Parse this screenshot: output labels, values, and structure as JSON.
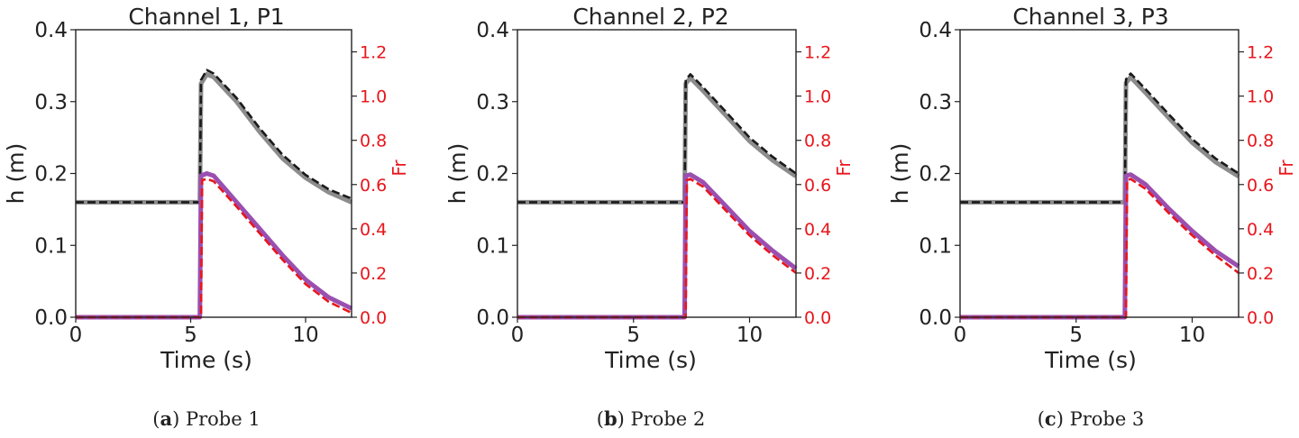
{
  "chart_data": [
    {
      "type": "line",
      "title": "Channel 1, P1",
      "caption_label": "a",
      "caption_text": "Probe 1",
      "xlabel": "Time (s)",
      "ylabel": "h (m)",
      "y2label": "Fr",
      "xlim": [
        0,
        12
      ],
      "ylim": [
        0,
        0.4
      ],
      "y2lim": [
        0,
        1.3
      ],
      "xticks": [
        "0",
        "5",
        "10"
      ],
      "yticks": [
        "0.0",
        "0.1",
        "0.2",
        "0.3",
        "0.4"
      ],
      "y2ticks": [
        "0.0",
        "0.2",
        "0.4",
        "0.6",
        "0.8",
        "1.0",
        "1.2"
      ],
      "grid": false,
      "series": [
        {
          "axis": "left",
          "color": "#8c8c8c",
          "style": "solid-thick",
          "x": [
            0,
            5.4,
            5.45,
            5.7,
            6,
            7,
            8,
            9,
            10,
            11,
            12
          ],
          "y": [
            0.16,
            0.16,
            0.325,
            0.338,
            0.334,
            0.3,
            0.258,
            0.221,
            0.194,
            0.174,
            0.16
          ]
        },
        {
          "axis": "left",
          "color": "#1a1a1a",
          "style": "dashed",
          "x": [
            0,
            5.4,
            5.45,
            5.7,
            6,
            7,
            8,
            9,
            10,
            11,
            12
          ],
          "y": [
            0.16,
            0.16,
            0.33,
            0.344,
            0.339,
            0.305,
            0.263,
            0.226,
            0.198,
            0.178,
            0.165
          ]
        },
        {
          "axis": "right",
          "color": "#9b4fb0",
          "style": "solid-thick",
          "x": [
            0,
            5.4,
            5.45,
            5.7,
            6,
            7,
            8,
            9,
            10,
            11,
            12
          ],
          "y": [
            0,
            0,
            0.64,
            0.65,
            0.64,
            0.52,
            0.4,
            0.28,
            0.17,
            0.09,
            0.04
          ]
        },
        {
          "axis": "right",
          "color": "#e8161c",
          "style": "dashed",
          "x": [
            0,
            5.45,
            5.5,
            5.7,
            6,
            7,
            8,
            9,
            10,
            11,
            12
          ],
          "y": [
            0,
            0,
            0.62,
            0.625,
            0.615,
            0.5,
            0.38,
            0.26,
            0.15,
            0.07,
            0.02
          ]
        }
      ]
    },
    {
      "type": "line",
      "title": "Channel 2, P2",
      "caption_label": "b",
      "caption_text": "Probe 2",
      "xlabel": "Time (s)",
      "ylabel": "h (m)",
      "y2label": "Fr",
      "xlim": [
        0,
        12
      ],
      "ylim": [
        0,
        0.4
      ],
      "y2lim": [
        0,
        1.3
      ],
      "xticks": [
        "0",
        "5",
        "10"
      ],
      "yticks": [
        "0.0",
        "0.1",
        "0.2",
        "0.3",
        "0.4"
      ],
      "y2ticks": [
        "0.0",
        "0.2",
        "0.4",
        "0.6",
        "0.8",
        "1.0",
        "1.2"
      ],
      "grid": false,
      "series": [
        {
          "axis": "left",
          "color": "#8c8c8c",
          "style": "solid-thick",
          "x": [
            0,
            7.2,
            7.25,
            7.45,
            8,
            9,
            10,
            11,
            12
          ],
          "y": [
            0.16,
            0.16,
            0.325,
            0.333,
            0.315,
            0.28,
            0.245,
            0.218,
            0.196
          ]
        },
        {
          "axis": "left",
          "color": "#1a1a1a",
          "style": "dashed",
          "x": [
            0,
            7.2,
            7.25,
            7.45,
            8,
            9,
            10,
            11,
            12
          ],
          "y": [
            0.16,
            0.16,
            0.33,
            0.338,
            0.32,
            0.285,
            0.25,
            0.223,
            0.2
          ]
        },
        {
          "axis": "right",
          "color": "#9b4fb0",
          "style": "solid-thick",
          "x": [
            0,
            7.2,
            7.25,
            7.45,
            8,
            9,
            10,
            11,
            12
          ],
          "y": [
            0,
            0,
            0.64,
            0.645,
            0.61,
            0.5,
            0.39,
            0.3,
            0.22
          ]
        },
        {
          "axis": "right",
          "color": "#e8161c",
          "style": "dashed",
          "x": [
            0,
            7.25,
            7.3,
            7.45,
            8,
            9,
            10,
            11,
            12
          ],
          "y": [
            0,
            0,
            0.62,
            0.625,
            0.59,
            0.48,
            0.37,
            0.28,
            0.2
          ]
        }
      ]
    },
    {
      "type": "line",
      "title": "Channel 3, P3",
      "caption_label": "c",
      "caption_text": "Probe 3",
      "xlabel": "Time (s)",
      "ylabel": "h (m)",
      "y2label": "Fr",
      "xlim": [
        0,
        12
      ],
      "ylim": [
        0,
        0.4
      ],
      "y2lim": [
        0,
        1.3
      ],
      "xticks": [
        "0",
        "5",
        "10"
      ],
      "yticks": [
        "0.0",
        "0.1",
        "0.2",
        "0.3",
        "0.4"
      ],
      "y2ticks": [
        "0.0",
        "0.2",
        "0.4",
        "0.6",
        "0.8",
        "1.0",
        "1.2"
      ],
      "grid": false,
      "series": [
        {
          "axis": "left",
          "color": "#8c8c8c",
          "style": "solid-thick",
          "x": [
            0,
            7.1,
            7.15,
            7.35,
            8,
            9,
            10,
            11,
            12
          ],
          "y": [
            0.16,
            0.16,
            0.326,
            0.334,
            0.312,
            0.277,
            0.243,
            0.216,
            0.196
          ]
        },
        {
          "axis": "left",
          "color": "#1a1a1a",
          "style": "dashed",
          "x": [
            0,
            7.1,
            7.15,
            7.35,
            8,
            9,
            10,
            11,
            12
          ],
          "y": [
            0.16,
            0.16,
            0.331,
            0.339,
            0.317,
            0.282,
            0.248,
            0.221,
            0.2
          ]
        },
        {
          "axis": "right",
          "color": "#9b4fb0",
          "style": "solid-thick",
          "x": [
            0,
            7.1,
            7.15,
            7.35,
            8,
            9,
            10,
            11,
            12
          ],
          "y": [
            0,
            0,
            0.64,
            0.645,
            0.6,
            0.49,
            0.39,
            0.3,
            0.23
          ]
        },
        {
          "axis": "right",
          "color": "#e8161c",
          "style": "dashed",
          "x": [
            0,
            7.15,
            7.2,
            7.35,
            8,
            9,
            10,
            11,
            12
          ],
          "y": [
            0,
            0,
            0.62,
            0.625,
            0.58,
            0.47,
            0.37,
            0.28,
            0.2
          ]
        }
      ]
    }
  ]
}
